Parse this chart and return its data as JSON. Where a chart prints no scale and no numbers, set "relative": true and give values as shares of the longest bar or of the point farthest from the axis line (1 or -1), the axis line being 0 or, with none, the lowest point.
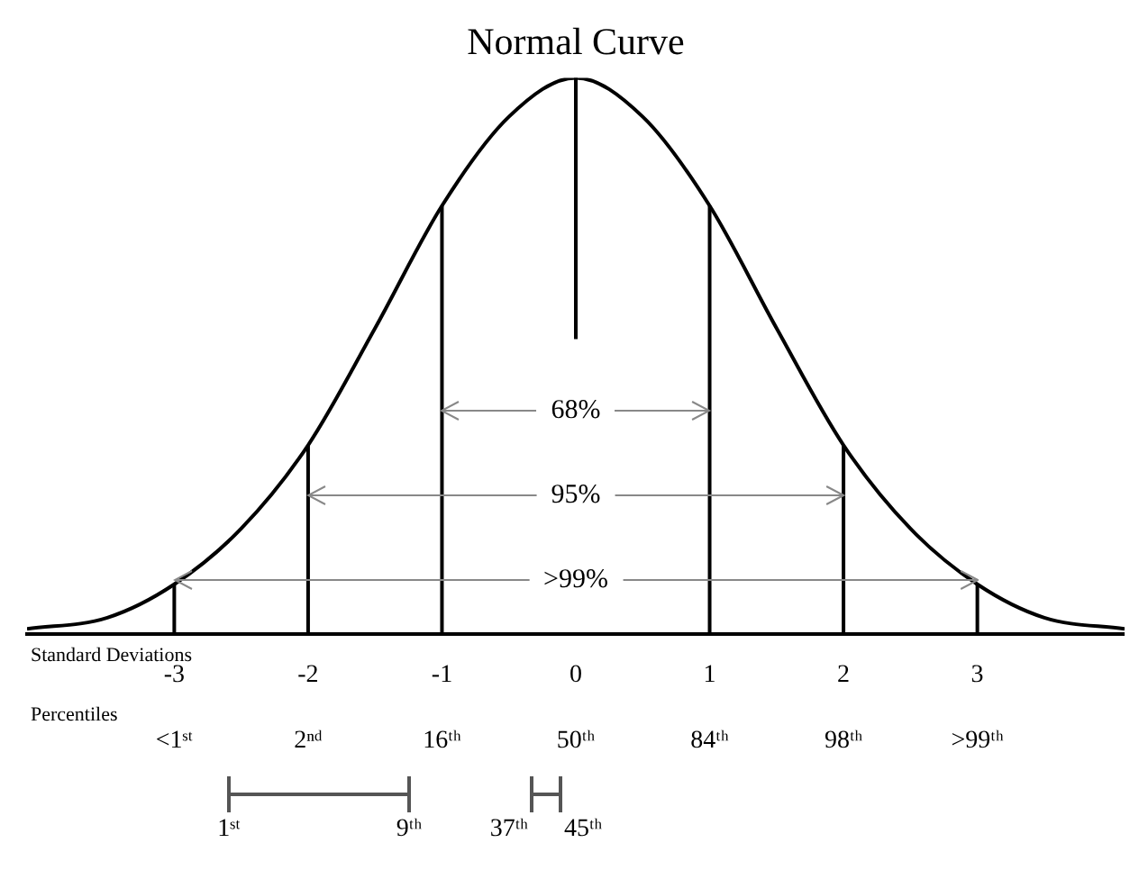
{
  "chart_data": {
    "type": "line",
    "title": "Normal Curve",
    "xlabel": "Standard Deviations",
    "relative": true,
    "grid": false,
    "legend": false,
    "marker": "none",
    "x": [
      -4.1,
      -3.5,
      -3,
      -2.5,
      -2,
      -1.5,
      -1,
      -0.5,
      0,
      0.5,
      1,
      1.5,
      2,
      2.5,
      3,
      3.5,
      4.1
    ],
    "xlim": [
      -4.1,
      4.1
    ],
    "xticks": [
      -3,
      -2,
      -1,
      0,
      1,
      2,
      3
    ],
    "series": [
      {
        "color": "#000000",
        "values": [
          0.01,
          0.03,
          0.09,
          0.19,
          0.34,
          0.55,
          0.77,
          0.93,
          1,
          0.93,
          0.77,
          0.55,
          0.34,
          0.19,
          0.09,
          0.03,
          0.01
        ]
      }
    ],
    "ref_lines": [
      {
        "axis": "x",
        "value": -3,
        "color": "#000000"
      },
      {
        "axis": "x",
        "value": -2,
        "color": "#000000"
      },
      {
        "axis": "x",
        "value": -1,
        "color": "#000000"
      },
      {
        "axis": "x",
        "value": 0,
        "color": "#000000"
      },
      {
        "axis": "x",
        "value": 1,
        "color": "#000000"
      },
      {
        "axis": "x",
        "value": 2,
        "color": "#000000"
      },
      {
        "axis": "x",
        "value": 3,
        "color": "#000000"
      }
    ],
    "annotations": [
      "68%",
      "95%",
      ">99%",
      "Percentiles",
      "<1ˢᵗ",
      "2ⁿᵈ",
      "16ᵗʰ",
      "50ᵗʰ",
      "84ᵗʰ",
      "98ᵗʰ",
      ">99ᵗʰ",
      "1ˢᵗ",
      "9ᵗʰ",
      "37ᵗʰ",
      "45ᵗʰ"
    ]
  }
}
